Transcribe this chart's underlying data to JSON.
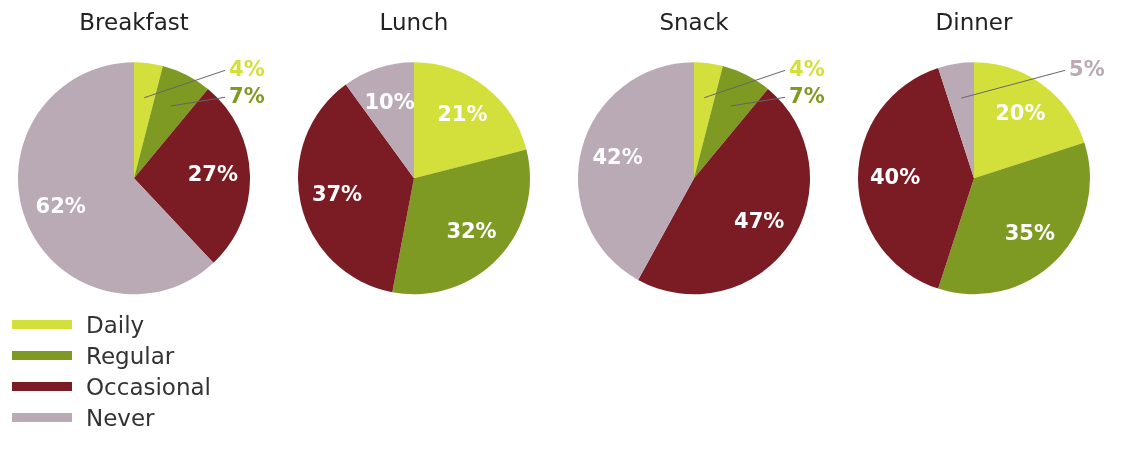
{
  "chart_data": [
    {
      "type": "pie",
      "title": "Breakfast",
      "categories": [
        "Daily",
        "Regular",
        "Occasional",
        "Never"
      ],
      "values": [
        4,
        7,
        27,
        62
      ],
      "colors": [
        "#d3df3a",
        "#7f9a22",
        "#7b1b24",
        "#b9aab6"
      ],
      "value_labels": [
        "4%",
        "7%",
        "27%",
        "62%"
      ],
      "legend": "bottom left"
    },
    {
      "type": "pie",
      "title": "Lunch",
      "categories": [
        null,
        null,
        null,
        null
      ],
      "values": [
        21,
        32,
        37,
        10
      ],
      "colors": [
        "#d3df3a",
        "#7f9a22",
        "#7b1b24",
        "#b9aab6"
      ],
      "value_labels": [
        "21%",
        "32%",
        "37%",
        "10%"
      ]
    },
    {
      "type": "pie",
      "title": "Snack",
      "categories": [
        null,
        null,
        null,
        null
      ],
      "values": [
        4,
        7,
        47,
        42
      ],
      "colors": [
        "#d3df3a",
        "#7f9a22",
        "#7b1b24",
        "#b9aab6"
      ],
      "value_labels": [
        "4%",
        "7%",
        "47%",
        "42%"
      ]
    },
    {
      "type": "pie",
      "title": "Dinner",
      "categories": [
        null,
        null,
        null,
        null
      ],
      "values": [
        20,
        35,
        40,
        5
      ],
      "colors": [
        "#d3df3a",
        "#7f9a22",
        "#7b1b24",
        "#b9aab6"
      ],
      "value_labels": [
        "20%",
        "35%",
        "40%",
        "5%"
      ]
    }
  ]
}
